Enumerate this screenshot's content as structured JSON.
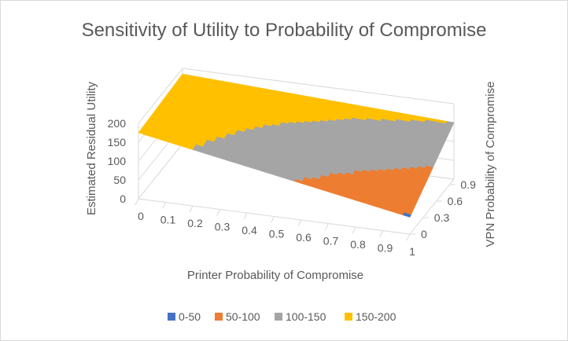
{
  "chart_data": {
    "type": "surface",
    "title": "Sensitivity of Utility to Probability of Compromise",
    "zlabel": "Estimated Residual Utility",
    "xlabel": "Printer Probability of Compromise",
    "ylabel": "VPN Probability of Compromise",
    "x_ticks": [
      "0",
      "0.1",
      "0.2",
      "0.3",
      "0.4",
      "0.5",
      "0.6",
      "0.7",
      "0.8",
      "0.9",
      "1"
    ],
    "y_ticks": [
      "0",
      "0.3",
      "0.6",
      "0.9"
    ],
    "z_ticks": [
      "0",
      "50",
      "100",
      "150",
      "200"
    ],
    "zlim": [
      0,
      200
    ],
    "grid": true,
    "legend_position": "bottom",
    "bands": [
      {
        "name": "0-50",
        "color": "#4472c4"
      },
      {
        "name": "50-100",
        "color": "#ed7d31"
      },
      {
        "name": "100-150",
        "color": "#a5a5a5"
      },
      {
        "name": "150-200",
        "color": "#ffc000"
      }
    ],
    "surface": {
      "x": [
        0,
        1
      ],
      "y": [
        0,
        1
      ],
      "z_corners": {
        "x0_y0": 175,
        "x1_y0": 45,
        "x0_y1": 185,
        "x1_y1": 150
      }
    }
  }
}
